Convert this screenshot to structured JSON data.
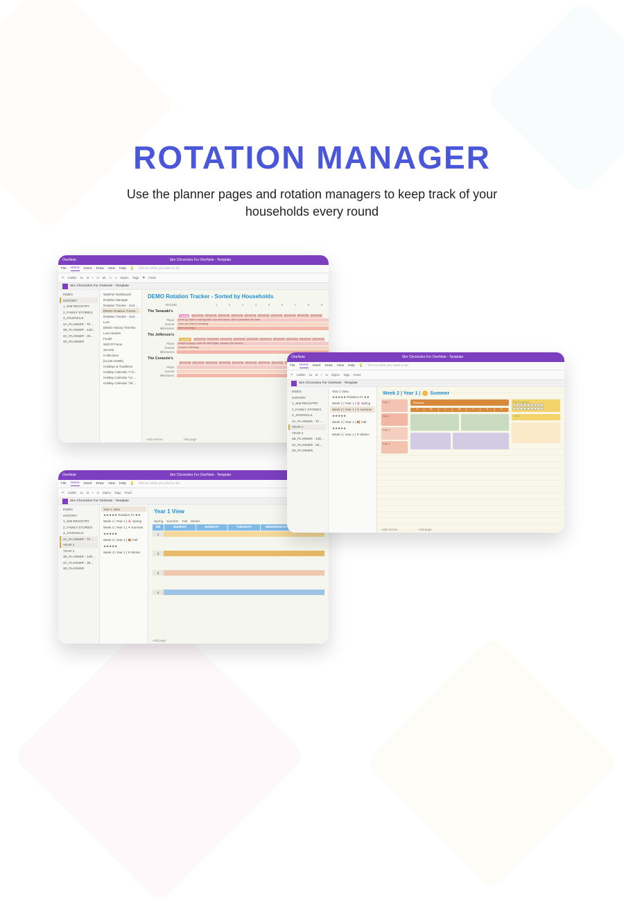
{
  "hero": {
    "title": "ROTATION MANAGER",
    "subtitle": "Use the planner pages and rotation managers to keep track of your households every round"
  },
  "colors": {
    "title": "#4a57d8",
    "purple_bar": "#7c3fbf",
    "blue_heading": "#1f8fd6"
  },
  "app": {
    "name": "OneNote",
    "document": "Sim Chronicles For OneNote - Template",
    "menus": [
      "File",
      "Home",
      "Insert",
      "Draw",
      "View",
      "Help"
    ],
    "tell_me": "Tell me what you want to do",
    "toolbar": [
      "↶",
      "Calibri",
      "11",
      "B",
      "I",
      "U",
      "ab",
      "A",
      "≡",
      "Styles",
      "Tags",
      "⚑",
      "Feed"
    ]
  },
  "nav": {
    "sections": [
      "INDEX",
      "HISTORY",
      "1_SIM REGISTRY",
      "2_FAMILY STORIES",
      "3_JOURNALS",
      "4A_PLANNER - T0 Se...",
      "4B_PLANNER - 14D S...",
      "4C_PLANNER - 28D S...",
      "4D_PLANNER"
    ]
  },
  "win1": {
    "page_title": "DEMO Rotation Tracker - Sorted by Households",
    "pages": [
      "Watcher Dashboard",
      "Rotation Manager",
      "Rotation Tracker - Sort...",
      "DEMO Rotation Tracke...",
      "Rotation Tracker - Sort...",
      "Lore",
      "DEMO History Timeline",
      "Love Stories",
      "Feuds",
      "Wall Of Fame",
      "Secrets",
      "Collections",
      "[CLUB NAME]",
      "Holidays & Traditions",
      "Holiday Calendar *7 D...",
      "Holiday Calendar *14 ...",
      "Holiday Calendar *28 ..."
    ],
    "round_label": "ROUND",
    "rounds": [
      "1",
      "2",
      "3",
      "4",
      "5",
      "6",
      "7",
      "8",
      "9",
      "10"
    ],
    "season_cell": "[SEASON]",
    "households": [
      {
        "name": "The Tanazaki's",
        "tag": "Spring",
        "tag_color": "#e59ac3",
        "rows": [
          "Plans",
          "Events",
          "Milestones"
        ],
        "plans": "Level up Sam's cooking skill, buy new home, Get a promotion for Jane",
        "events": "Jane and Sam's Wedding",
        "milestones": "Birth of Kaelyn"
      },
      {
        "name": "The Jefferson's",
        "tag": "Summer",
        "tag_color": "#e7b55b",
        "rows": [
          "Plans",
          "Events",
          "Milestones"
        ],
        "plans": "Adopt a puppy, have Ru visit Elijah, prepare the nursery",
        "events": "Duante's Birthday",
        "milestones": ""
      },
      {
        "name": "The Corazole's",
        "tag": "",
        "rows": [
          "Plans",
          "Events",
          "Milestones"
        ]
      }
    ],
    "add_section": "Add section",
    "add_page": "Add page"
  },
  "win2": {
    "page_title_prefix": "Week 2 | Year 1 |",
    "season": "Summer",
    "pages": [
      "Year 1 View",
      "★★★★★ Rotation #1 ★★",
      "Week 1 | Year 1 | 🌸 Spring",
      "Week 2 | Year 1 | ☀ Summer",
      "★★★★★",
      "Week 3 | Year 1 | 🍂 Fall",
      "★★★★★",
      "Week 4 | Year 1 | ❄ Winter"
    ],
    "nav_sel": [
      "YEAR 1",
      "YEAR 2"
    ],
    "routine_label": "Routines",
    "days": [
      "S",
      "M",
      "T",
      "W",
      "T",
      "F",
      "S"
    ],
    "skill_label": "Skill Progress",
    "level_label": "Level",
    "day_cells": [
      "Day 1",
      "Day 2",
      "Day 3",
      "Day 4"
    ],
    "panels": [
      "Notes",
      "Social",
      "Notes",
      "Events & Occasions",
      "Calendar"
    ],
    "add_section": "Add section",
    "add_page": "Add page"
  },
  "win3": {
    "page_title": "Year 1 View",
    "pages": [
      "Year 1 View",
      "★★★★★ Rotation #1 ★★",
      "Week 1 | Year 1 | 🌸 Spring",
      "Week 2 | Year 1 | ☀ Summer",
      "★★★★★",
      "Week 3 | Year 1 | 🍂 Fall",
      "★★★★★",
      "Week 4 | Year 1 | ❄ Winter"
    ],
    "season_tabs": [
      "Spring",
      "Summer",
      "Fall",
      "Winter"
    ],
    "day_headers": [
      "Wk",
      "SUNDAY",
      "MONDAY",
      "TUESDAY",
      "WEDNESDAY",
      "THURSDAY"
    ],
    "weeks": [
      "1",
      "2",
      "3",
      "4"
    ],
    "add_page": "Add page"
  }
}
